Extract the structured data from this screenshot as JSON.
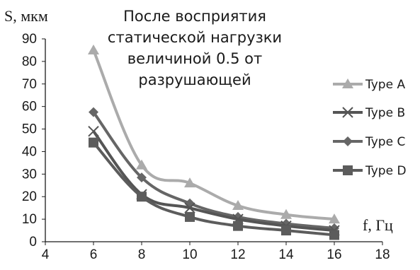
{
  "chart_data": {
    "type": "line",
    "title": "После восприятия статической нагрузки величиной 0.5 от разрушающей",
    "xlabel": "f, Гц",
    "ylabel": "S, мкм",
    "xlim": [
      4,
      18
    ],
    "ylim": [
      0,
      90
    ],
    "xticks": [
      4,
      6,
      8,
      10,
      12,
      14,
      16,
      18
    ],
    "yticks": [
      0,
      10,
      20,
      30,
      40,
      50,
      60,
      70,
      80,
      90
    ],
    "x": [
      6,
      8,
      10,
      12,
      14,
      16
    ],
    "legend_position": "right",
    "grid": false,
    "series": [
      {
        "name": "Type A",
        "values": [
          85,
          34,
          26,
          16,
          12,
          10
        ],
        "color": "#ababab",
        "marker": "triangle"
      },
      {
        "name": "Type B",
        "values": [
          49,
          21,
          15,
          10,
          7,
          5
        ],
        "color": "#555555",
        "marker": "x"
      },
      {
        "name": "Type C",
        "values": [
          57.5,
          28.5,
          17,
          11,
          8,
          6
        ],
        "color": "#666666",
        "marker": "diamond"
      },
      {
        "name": "Type D",
        "values": [
          44,
          20,
          11,
          7,
          5,
          3
        ],
        "color": "#5c5c5c",
        "marker": "square"
      }
    ]
  }
}
